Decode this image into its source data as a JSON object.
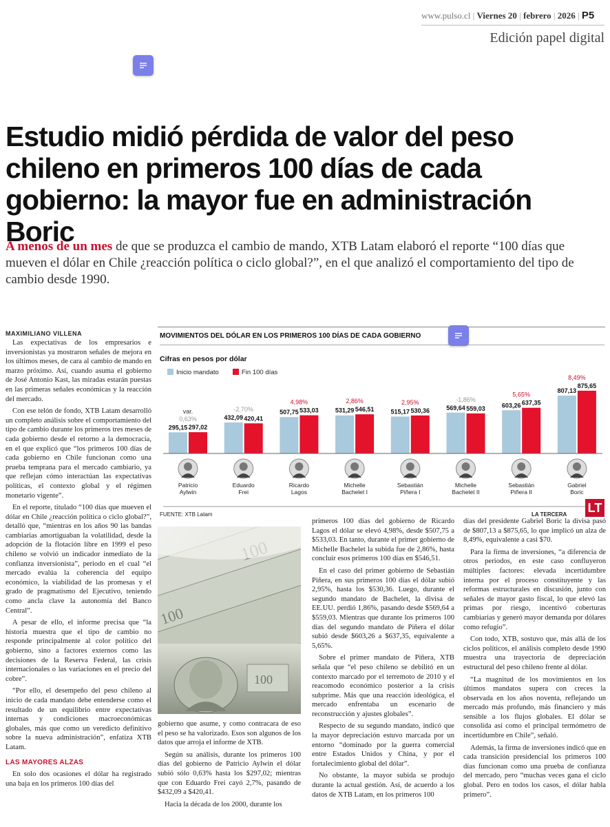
{
  "header": {
    "site": "www.pulso.cl",
    "day": "Viernes 20",
    "month": "febrero",
    "year": "2026",
    "page": "P5",
    "edition": "Edición papel digital"
  },
  "article": {
    "headline": "Estudio midió pérdida de valor del peso chileno en primeros 100 días de cada gobierno: la mayor fue en administración Boric",
    "lead_kicker": "A menos de un mes",
    "lead_text": " de que se produzca el cambio de mando, XTB Latam elaboró el reporte “100 días que mueven el dólar en Chile ¿reacción política o ciclo global?”, en el que analizó el comportamiento del tipo de cambio desde 1990.",
    "byline": "MAXIMILIANO VILLENA",
    "col1": [
      "Las expectativas de los empresarios e inversionistas ya mostraron señales de mejora en los últimos meses, de cara al cambio de mando en marzo próximo. Así, cuando asuma el gobierno de José Antonio Kast, las miradas estarán puestas en las primeras señales económicas y la reacción del mercado.",
      "Con ese telón de fondo, XTB Latam desarrolló un completo análisis sobre el comportamiento del tipo de cambio durante los primeros tres meses de cada gobierno desde el retorno a la democracia, en el que explicó que “los primeros 100 días de cada gobierno en Chile funcionan como una prueba temprana para el mercado cambiario, ya que reflejan cómo interactúan las expectativas políticas, el contexto global y el régimen monetario vigente”.",
      "En el reporte, titulado “100 días que mueven el dólar en Chile ¿reacción política o ciclo global?”, detalló que, “mientras en los años 90 las bandas cambiarias amortiguaban la volatilidad, desde la adopción de la flotación libre en 1999 el peso chileno se volvió un indicador inmediato de la confianza inversionista”, periodo en el cual “el mercado evalúa la coherencia del equipo económico, la viabilidad de las promesas y el grado de pragmatismo del Ejecutivo, teniendo como ancla clave la autonomía del Banco Central”.",
      "A pesar de ello, el informe precisa que “la historia muestra que el tipo de cambio no responde principalmente al color político del gobierno, sino a factores externos como las decisiones de la Reserva Federal, las crisis internacionales o las variaciones en el precio del cobre”.",
      "“Por ello, el desempeño del peso chileno al inicio de cada mandato debe entenderse como el resultado de un equilibrio entre expectativas internas y condiciones macroeconómicas globales, más que como un veredicto definitivo sobre la nueva administración”, enfatiza XTB Latam."
    ],
    "subhead": "LAS MAYORES ALZAS",
    "col1_after": [
      "En solo dos ocasiones el dólar ha registrado una baja en los primeros 100 días del"
    ],
    "col2": [
      "gobierno que asume, y como contracara de eso el peso se ha valorizado. Esos son algunos de los datos que arroja el informe de XTB.",
      "Según su análisis, durante los primeros 100 días del gobierno de Patricio Aylwin el dólar subió sólo 0,63% hasta los $297,02; mientras que con Eduardo Frei cayó 2,7%, pasando de $432,09 a $420,41.",
      "Hacia la década de los 2000, durante los"
    ],
    "col3": [
      "primeros 100 días del gobierno de Ricardo Lagos el dólar se elevó 4,98%, desde $507,75 a $533,03. En tanto, durante el primer gobierno de Michelle Bachelet la subida fue de 2,86%, hasta concluir esos primeros 100 días en $546,51.",
      "En el caso del primer gobierno de Sebastián Piñera, en sus primeros 100 días el dólar subió 2,95%, hasta los $530,36. Luego, durante el segundo mandato de Bachelet, la divisa de EE.UU. perdió 1,86%, pasando desde $569,64 a $559,03. Mientras que durante los primeros 100 días del segundo mandato de Piñera el dólar subió desde $603,26 a $637,35, equivalente a 5,65%.",
      "Sobre el primer mandato de Piñera, XTB señala que “el peso chileno se debilitó en un contexto marcado por el terremoto de 2010 y el reacomodo económico posterior a la crisis subprime. Más que una reacción ideológica, el mercado enfrentaba un escenario de reconstrucción y ajustes globales”.",
      "Respecto de su segundo mandato, indicó que la mayor depreciación estuvo marcada por un entorno “dominado por la guerra comercial entre Estados Unidos y China, y por el fortalecimiento global del dólar”.",
      "No obstante, la mayor subida se produjo durante la actual gestión. Así, de acuerdo a los datos de XTB Latam, en los primeros 100"
    ],
    "col4": [
      "días del presidente Gabriel Boric la divisa pasó de $807,13 a $875,65, lo que implicó un alza de 8,49%, equivalente a casi $70.",
      "Para la firma de inversiones, “a diferencia de otros periodos, en este caso confluyeron múltiples factores: elevada incertidumbre interna por el proceso constituyente y las reformas estructurales en discusión, junto con señales de mayor gasto fiscal, lo que elevó las primas por riesgo, incentivó coberturas cambiarias y generó mayor demanda por dólares como refugio”.",
      "Con todo, XTB, sostuvo que, más allá de los ciclos políticos, el análisis completo desde 1990 muestra una trayectoria de depreciación estructural del peso chileno frente al dólar.",
      "“La magnitud de los movimientos en los últimos mandatos supera con creces la observada en los años noventa, reflejando un mercado más profundo, más financiero y más sensible a los flujos globales. El dólar se consolida así como el principal termómetro de incertidumbre en Chile”, señaló.",
      "Además, la firma de inversiones indicó que en cada transición presidencial los primeros 100 días funcionan como una prueba de confianza del mercado, pero “muchas veces gana el ciclo global. Pero en todos los casos, el dólar habla primero”."
    ]
  },
  "chart_data": {
    "type": "bar",
    "title": "MOVIMIENTOS DEL DÓLAR EN LOS PRIMEROS 100 DÍAS DE CADA GOBIERNO",
    "subtitle": "Cifras en pesos por dólar",
    "var_label": "var.",
    "categories": [
      "Patricio Aylwin",
      "Eduardo Frei",
      "Ricardo Lagos",
      "Michelle Bachelet I",
      "Sebastián Piñera I",
      "Michelle Bachelet II",
      "Sebastián Piñera II",
      "Gabriel Boric"
    ],
    "category_lines": [
      [
        "Patricio",
        "Aylwin"
      ],
      [
        "Eduardo",
        "Frei"
      ],
      [
        "Ricardo",
        "Lagos"
      ],
      [
        "Michelle",
        "Bachelet I"
      ],
      [
        "Sebastián",
        "Piñera I"
      ],
      [
        "Michelle",
        "Bachelet II"
      ],
      [
        "Sebastián",
        "Piñera II"
      ],
      [
        "Gabriel",
        "Boric"
      ]
    ],
    "series": [
      {
        "name": "Inicio mandato",
        "color": "#a9c9dc",
        "values": [
          295.15,
          432.09,
          507.75,
          531.29,
          515.17,
          569.64,
          603.26,
          807.13
        ],
        "labels": [
          "295,15",
          "432,09",
          "507,75",
          "531,29",
          "515,17",
          "569,64",
          "603,26",
          "807,13"
        ]
      },
      {
        "name": "Fin 100 días",
        "color": "#e4122b",
        "values": [
          297.02,
          420.41,
          533.03,
          546.51,
          530.36,
          559.03,
          637.35,
          875.65
        ],
        "labels": [
          "297,02",
          "420,41",
          "533,03",
          "546,51",
          "530,36",
          "559,03",
          "637,35",
          "875,65"
        ]
      }
    ],
    "variation": [
      "0,63%",
      "-2,70%",
      "4,98%",
      "2,86%",
      "2,95%",
      "-1,86%",
      "5,65%",
      "8,49%"
    ],
    "source": "FUENTE: XTB Latam",
    "brand": "LA TERCERA",
    "logo": "LT",
    "accent_up": "#c8102e",
    "accent_down": "#999999"
  }
}
